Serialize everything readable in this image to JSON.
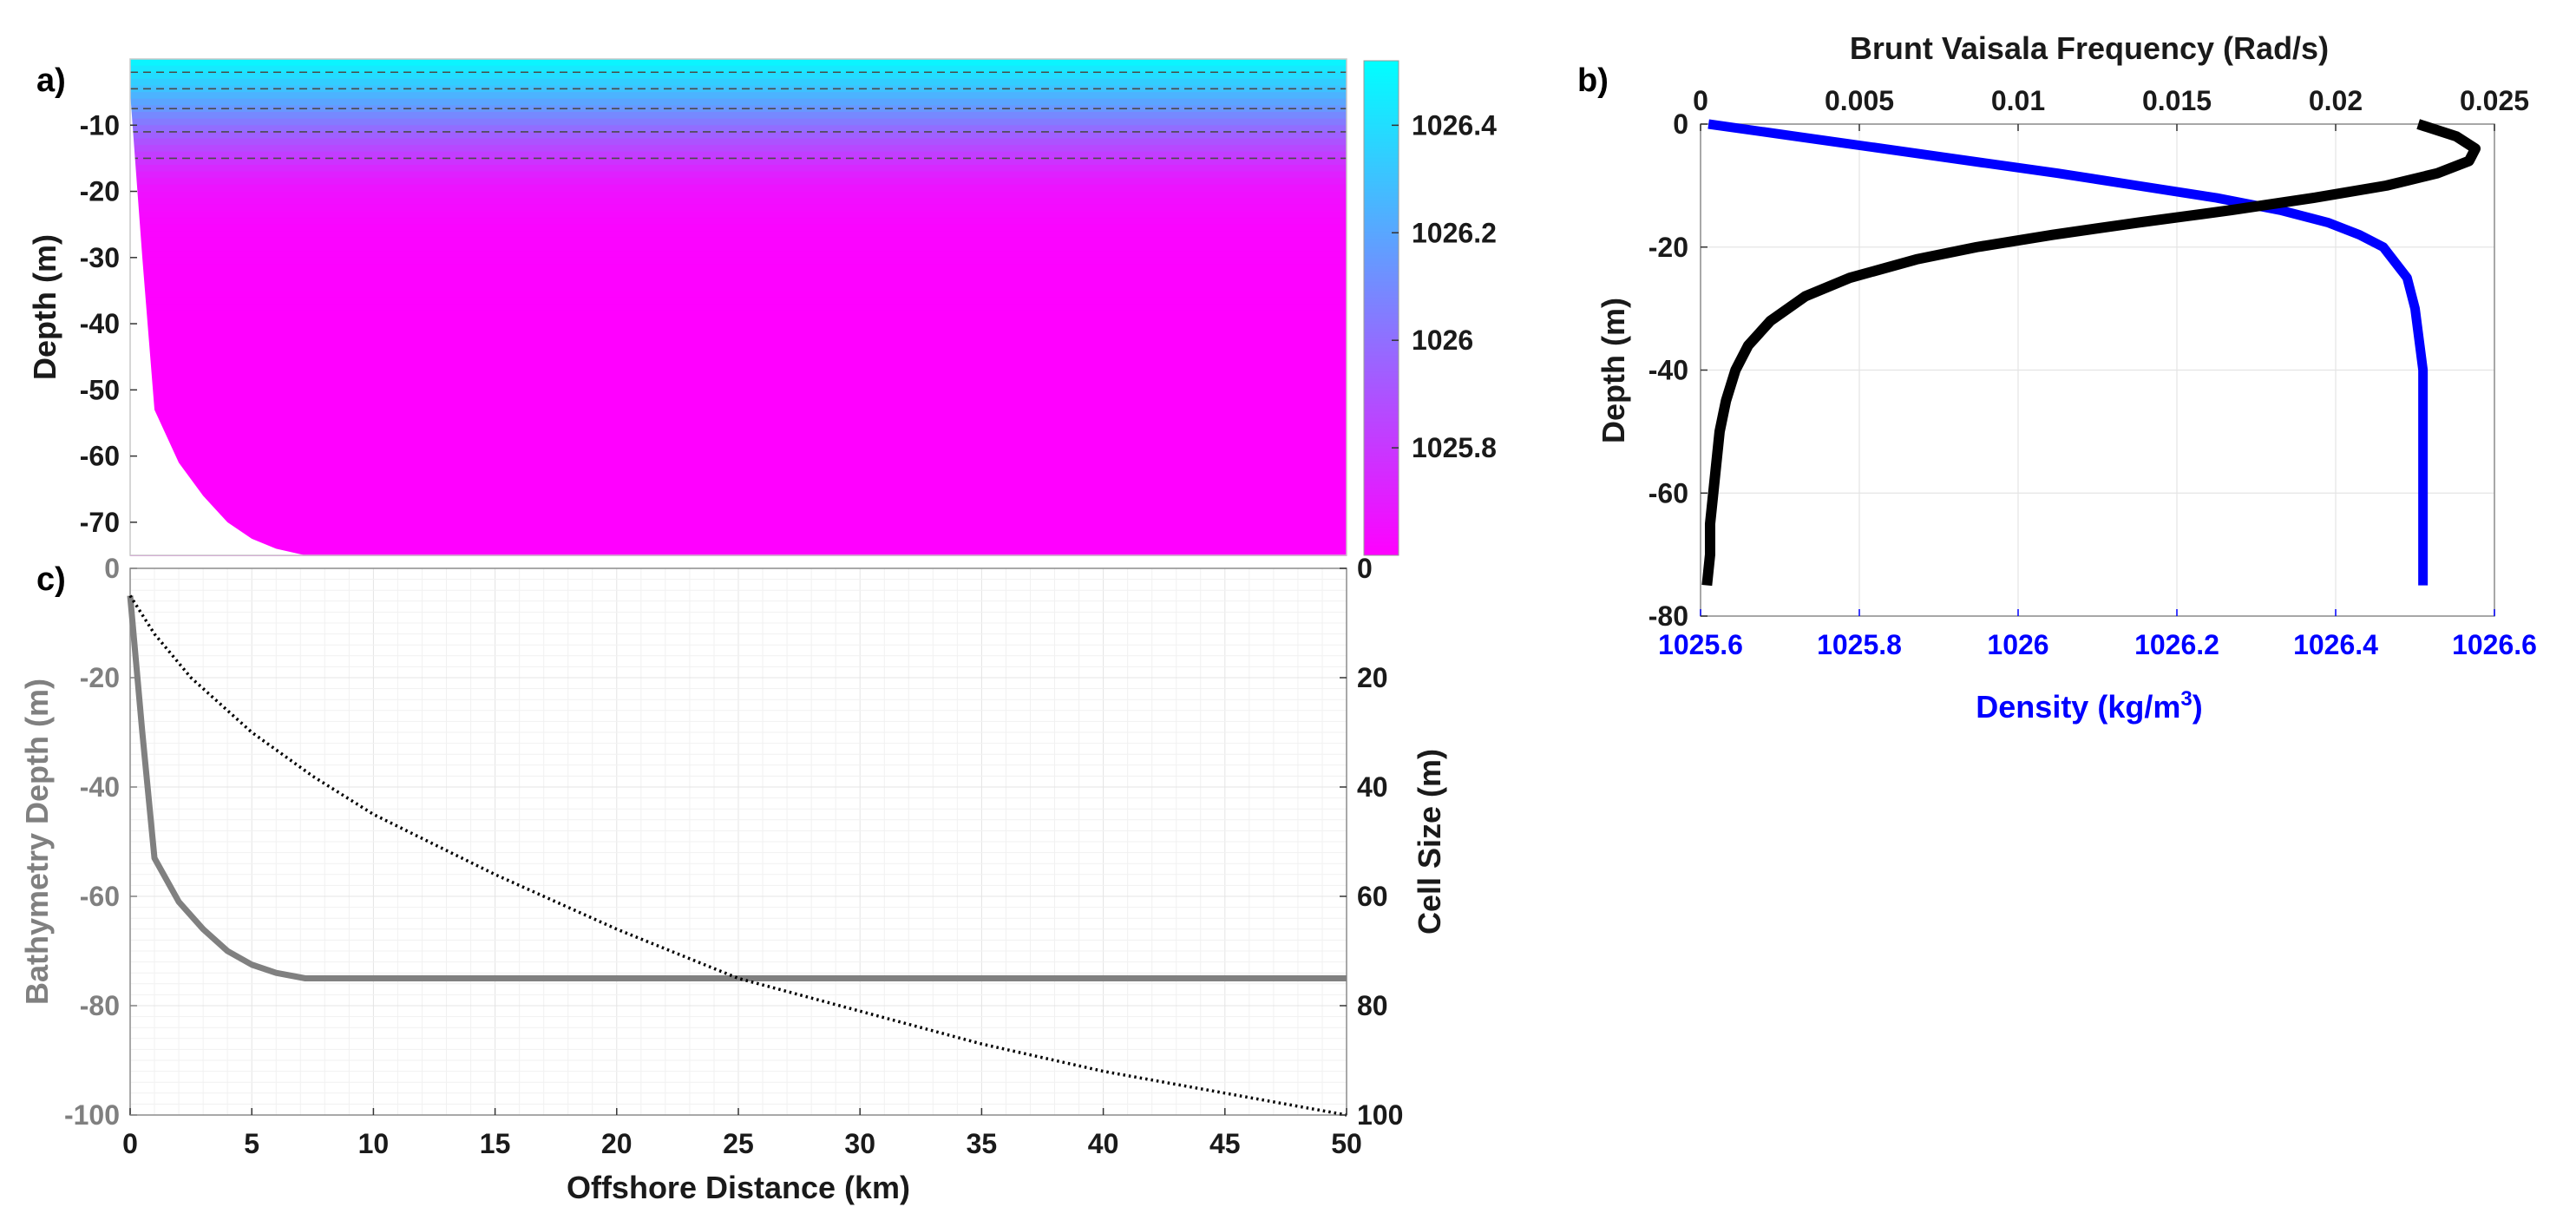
{
  "chart_data": [
    {
      "panel": "a)",
      "type": "heatmap",
      "ylabel": "Depth (m)",
      "yticks": [
        -10,
        -20,
        -30,
        -40,
        -50,
        -60,
        -70
      ],
      "ylim": [
        -75,
        0
      ],
      "xlim": [
        0,
        50
      ],
      "grid": false,
      "colormap": [
        "#00ffff",
        "#ff00ff"
      ],
      "colorbar": {
        "ticks": [
          1025.8,
          1026,
          1026.2,
          1026.4
        ],
        "range": [
          1025.6,
          1026.52
        ]
      },
      "density_profile": {
        "depth": [
          0,
          -2,
          -4,
          -6,
          -8,
          -10,
          -12,
          -14,
          -16,
          -18,
          -20,
          -25,
          -30,
          -40,
          -50,
          -60,
          -75
        ],
        "density": [
          1025.62,
          1025.7,
          1025.8,
          1025.9,
          1026.0,
          1026.1,
          1026.2,
          1026.28,
          1026.36,
          1026.42,
          1026.46,
          1026.5,
          1026.51,
          1026.52,
          1026.52,
          1026.52,
          1026.52
        ]
      },
      "contour_depths": [
        -2,
        -4.5,
        -7.5,
        -11,
        -15
      ],
      "bottom": {
        "x": [
          0,
          0.5,
          1.0,
          2,
          3,
          4,
          5,
          6,
          7.2,
          50
        ],
        "depth": [
          -5,
          -30,
          -53,
          -61,
          -66,
          -70,
          -72.5,
          -74,
          -75,
          -75
        ]
      }
    },
    {
      "panel": "b)",
      "type": "line",
      "title": "Brunt Vaisala Frequency (Rad/s)",
      "ylabel": "Depth (m)",
      "ylim": [
        -80,
        0
      ],
      "yticks": [
        0,
        -20,
        -40,
        -60,
        -80
      ],
      "grid": true,
      "x_top": {
        "lim": [
          0,
          0.025
        ],
        "ticks": [
          0,
          0.005,
          0.01,
          0.015,
          0.02,
          0.025
        ],
        "tick_labels": [
          "0",
          "0.005",
          "0.01",
          "0.015",
          "0.02",
          "0.025"
        ]
      },
      "x_bottom": {
        "label": "Density (kg/m",
        "label_sup": "3",
        "label_end": ")",
        "lim": [
          1025.6,
          1026.6
        ],
        "ticks": [
          1025.6,
          1025.8,
          1026,
          1026.2,
          1026.4,
          1026.6
        ],
        "tick_labels": [
          "1025.6",
          "1025.8",
          "1026",
          "1026.2",
          "1026.4",
          "1026.6"
        ]
      },
      "series": [
        {
          "axis": "bottom",
          "color": "#0000ff",
          "depth": [
            0,
            -2,
            -4,
            -6,
            -8,
            -10,
            -12,
            -14,
            -16,
            -18,
            -20,
            -25,
            -30,
            -40,
            -50,
            -60,
            -75
          ],
          "x": [
            1025.61,
            1025.72,
            1025.83,
            1025.94,
            1026.05,
            1026.15,
            1026.25,
            1026.33,
            1026.39,
            1026.43,
            1026.46,
            1026.49,
            1026.5,
            1026.51,
            1026.51,
            1026.51,
            1026.51
          ]
        },
        {
          "axis": "top",
          "color": "#000000",
          "depth": [
            0,
            -2,
            -4,
            -6,
            -8,
            -10,
            -12,
            -14,
            -16,
            -18,
            -20,
            -22,
            -25,
            -28,
            -32,
            -36,
            -40,
            -45,
            -50,
            -55,
            -60,
            -65,
            -70,
            -75
          ],
          "x": [
            0.0226,
            0.0238,
            0.0244,
            0.0242,
            0.0232,
            0.0216,
            0.0193,
            0.0167,
            0.0138,
            0.0111,
            0.0087,
            0.0068,
            0.0047,
            0.0033,
            0.0022,
            0.0015,
            0.0011,
            0.0008,
            0.0006,
            0.0005,
            0.0004,
            0.0003,
            0.0003,
            0.0002
          ]
        }
      ]
    },
    {
      "panel": "c)",
      "type": "line",
      "xlabel": "Offshore Distance (km)",
      "ylabel": "Bathymetry Depth (m)",
      "y2label": "Cell Size (m)",
      "xlim": [
        0,
        50
      ],
      "ylim": [
        -100,
        0
      ],
      "xticks": [
        0,
        5,
        10,
        15,
        20,
        25,
        30,
        35,
        40,
        45,
        50
      ],
      "yticks": [
        0,
        -20,
        -40,
        -60,
        -80,
        -100
      ],
      "y2lim": [
        0,
        100
      ],
      "y2ticks": [
        0,
        20,
        40,
        60,
        80,
        100
      ],
      "grid": true,
      "series": [
        {
          "axis": "left",
          "color": "#808080",
          "x": [
            0,
            0.5,
            1.0,
            2,
            3,
            4,
            5,
            6,
            7.2,
            50
          ],
          "y": [
            -5,
            -30,
            -53,
            -61,
            -66,
            -70,
            -72.5,
            -74,
            -75,
            -75
          ]
        },
        {
          "axis": "right",
          "color": "#000000",
          "style": "dotted",
          "x": [
            0,
            1,
            2.5,
            5,
            7.5,
            10,
            15,
            20,
            25,
            30,
            35,
            40,
            45,
            50
          ],
          "y": [
            5,
            12,
            20,
            30,
            38,
            45,
            56,
            66,
            75,
            81,
            87,
            92,
            96,
            100
          ]
        }
      ]
    }
  ]
}
